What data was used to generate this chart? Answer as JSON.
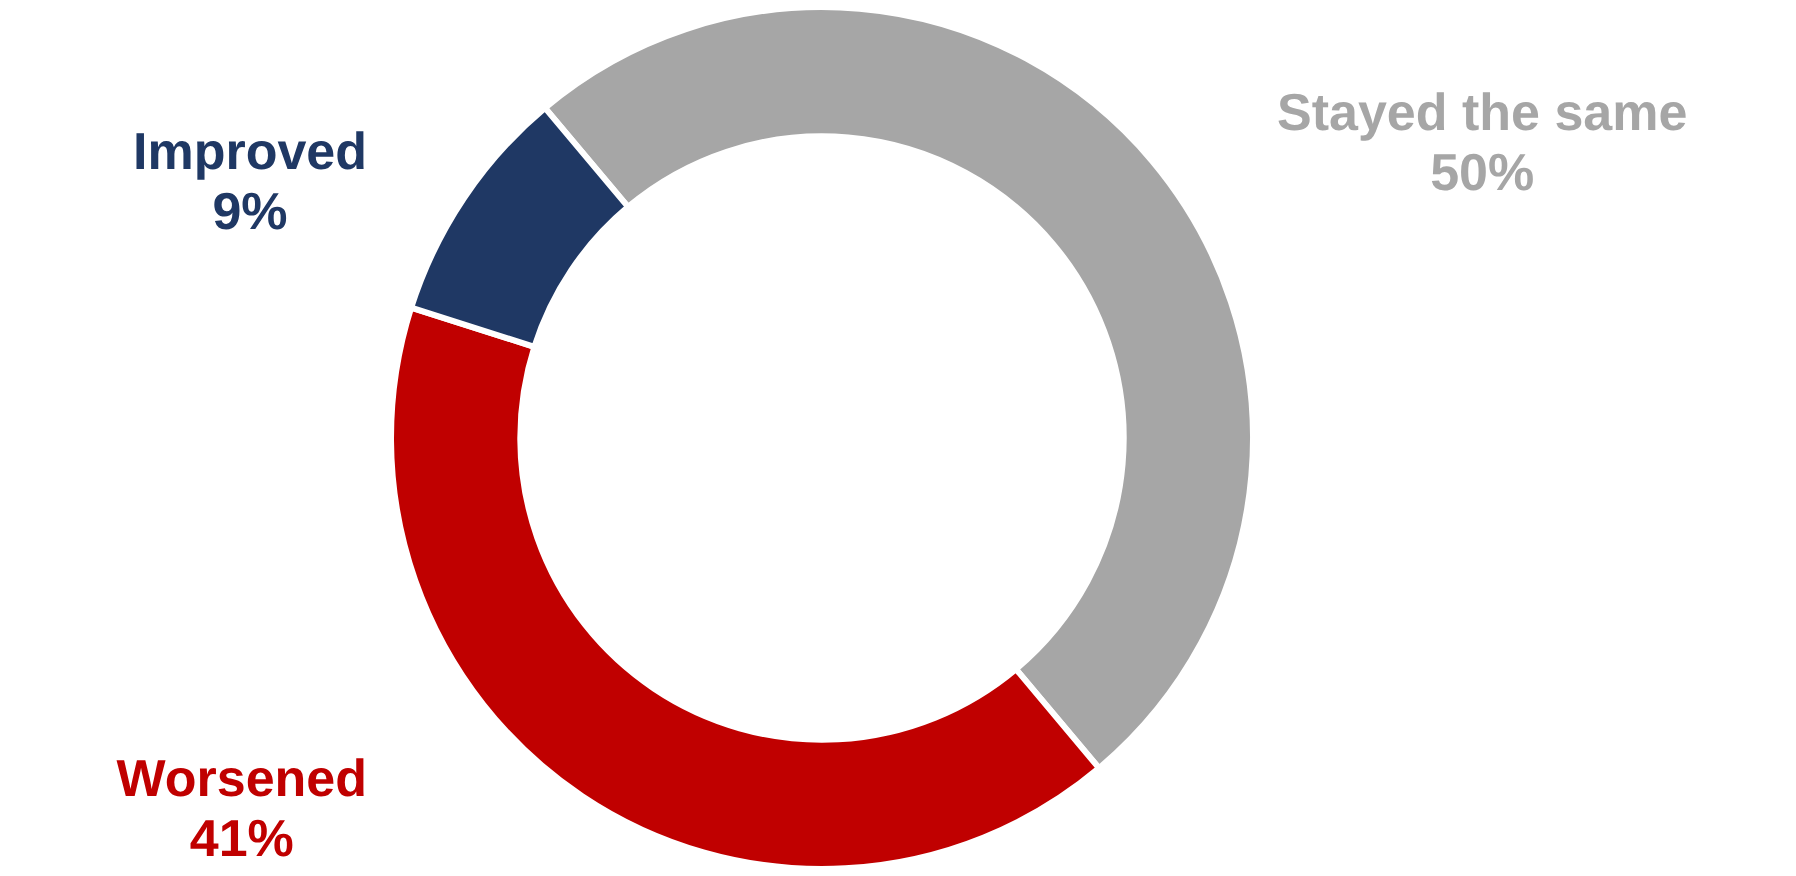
{
  "chart_data": {
    "type": "donut",
    "categories": [
      "Stayed the same",
      "Worsened",
      "Improved"
    ],
    "values": [
      50,
      41,
      9
    ],
    "colors": [
      "#a6a6a6",
      "#c00000",
      "#1f3864"
    ],
    "value_labels": [
      "50%",
      "41%",
      "9%"
    ],
    "legend": false
  }
}
